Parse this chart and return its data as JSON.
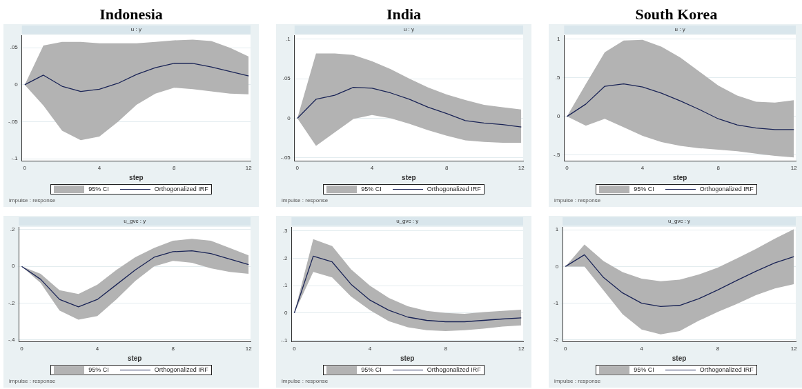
{
  "chart_data": [
    {
      "type": "line",
      "title": "Indonesia",
      "subtitle": "u : y",
      "xlabel": "step",
      "annotations": [
        "95% CI",
        "impulse : response"
      ],
      "x": [
        0,
        1,
        2,
        3,
        4,
        5,
        6,
        7,
        8,
        9,
        10,
        11,
        12
      ],
      "xlim": [
        -0.15,
        12.1
      ],
      "ylim": [
        -0.103,
        0.067
      ],
      "xticks": [
        0,
        4,
        8,
        12
      ],
      "yticks": [
        {
          "value": -0.1,
          "label": "-.1"
        },
        {
          "value": -0.05,
          "label": "-.05"
        },
        0,
        {
          "value": 0.05,
          "label": ".05"
        }
      ],
      "grid": "y",
      "legend": "bottom",
      "series": [
        {
          "name": "Orthogonalized IRF",
          "type": "line",
          "color": "#1a2456",
          "values": [
            0,
            0.013,
            -0.002,
            -0.009,
            -0.006,
            0.002,
            0.014,
            0.023,
            0.029,
            0.029,
            0.024,
            0.018,
            0.012
          ],
          "lower": [
            0,
            -0.028,
            -0.062,
            -0.075,
            -0.07,
            -0.05,
            -0.027,
            -0.012,
            -0.004,
            -0.006,
            -0.009,
            -0.012,
            -0.013
          ],
          "upper": [
            0,
            0.053,
            0.058,
            0.058,
            0.056,
            0.056,
            0.056,
            0.058,
            0.06,
            0.061,
            0.059,
            0.05,
            0.038
          ]
        }
      ]
    },
    {
      "type": "line",
      "title": "India",
      "subtitle": "u : y",
      "xlabel": "step",
      "annotations": [
        "95% CI",
        "impulse : response"
      ],
      "x": [
        0,
        1,
        2,
        3,
        4,
        5,
        6,
        7,
        8,
        9,
        10,
        11,
        12
      ],
      "xlim": [
        -0.15,
        12.1
      ],
      "ylim": [
        -0.054,
        0.105
      ],
      "xticks": [
        0,
        4,
        8,
        12
      ],
      "yticks": [
        {
          "value": -0.05,
          "label": "-.05"
        },
        0,
        {
          "value": 0.05,
          "label": ".05"
        },
        {
          "value": 0.1,
          "label": ".1"
        }
      ],
      "grid": "y",
      "legend": "bottom",
      "series": [
        {
          "name": "Orthogonalized IRF",
          "type": "line",
          "color": "#1a2456",
          "values": [
            0,
            0.024,
            0.029,
            0.039,
            0.038,
            0.032,
            0.024,
            0.014,
            0.006,
            -0.003,
            -0.006,
            -0.008,
            -0.011
          ],
          "lower": [
            0,
            -0.035,
            -0.018,
            -0.001,
            0.004,
            0,
            -0.007,
            -0.015,
            -0.022,
            -0.028,
            -0.03,
            -0.031,
            -0.031
          ],
          "upper": [
            0,
            0.082,
            0.082,
            0.08,
            0.072,
            0.062,
            0.05,
            0.039,
            0.03,
            0.023,
            0.017,
            0.014,
            0.011
          ]
        }
      ]
    },
    {
      "type": "line",
      "title": "South Korea",
      "subtitle": "u : y",
      "xlabel": "step",
      "annotations": [
        "95% CI",
        "impulse : response"
      ],
      "x": [
        0,
        1,
        2,
        3,
        4,
        5,
        6,
        7,
        8,
        9,
        10,
        11,
        12
      ],
      "xlim": [
        -0.15,
        12.1
      ],
      "ylim": [
        -0.575,
        1.05
      ],
      "xticks": [
        0,
        4,
        8,
        12
      ],
      "yticks": [
        {
          "value": -0.5,
          "label": "-.5"
        },
        0,
        {
          "value": 0.5,
          "label": ".5"
        },
        1
      ],
      "grid": "y",
      "legend": "bottom",
      "series": [
        {
          "name": "Orthogonalized IRF",
          "type": "line",
          "color": "#1a2456",
          "values": [
            0,
            0.16,
            0.39,
            0.42,
            0.38,
            0.3,
            0.2,
            0.09,
            -0.03,
            -0.11,
            -0.15,
            -0.17,
            -0.17
          ],
          "lower": [
            0,
            -0.12,
            -0.03,
            -0.14,
            -0.25,
            -0.33,
            -0.38,
            -0.41,
            -0.43,
            -0.45,
            -0.48,
            -0.51,
            -0.53
          ],
          "upper": [
            0,
            0.42,
            0.83,
            0.98,
            0.99,
            0.9,
            0.76,
            0.58,
            0.4,
            0.27,
            0.19,
            0.18,
            0.21
          ]
        }
      ]
    },
    {
      "type": "line",
      "subtitle": "u_gvc : y",
      "xlabel": "step",
      "annotations": [
        "95% CI",
        "impulse : response"
      ],
      "x": [
        0,
        1,
        2,
        3,
        4,
        5,
        6,
        7,
        8,
        9,
        10,
        11,
        12
      ],
      "xlim": [
        -0.15,
        12.1
      ],
      "ylim": [
        -0.41,
        0.215
      ],
      "xticks": [
        0,
        4,
        8,
        12
      ],
      "yticks": [
        {
          "value": -0.4,
          "label": "-.4"
        },
        {
          "value": -0.2,
          "label": "-.2"
        },
        0,
        {
          "value": 0.2,
          "label": ".2"
        }
      ],
      "grid": "y",
      "legend": "bottom",
      "series": [
        {
          "name": "Orthogonalized IRF",
          "type": "line",
          "color": "#1a2456",
          "values": [
            0,
            -0.07,
            -0.18,
            -0.22,
            -0.18,
            -0.1,
            -0.02,
            0.05,
            0.08,
            0.085,
            0.07,
            0.04,
            0.01
          ],
          "lower": [
            0,
            -0.09,
            -0.24,
            -0.29,
            -0.27,
            -0.18,
            -0.08,
            0,
            0.03,
            0.02,
            -0.01,
            -0.03,
            -0.04
          ],
          "upper": [
            0,
            -0.04,
            -0.13,
            -0.15,
            -0.1,
            -0.02,
            0.05,
            0.1,
            0.14,
            0.15,
            0.14,
            0.1,
            0.06
          ]
        }
      ]
    },
    {
      "type": "line",
      "subtitle": "u_gvc : y",
      "xlabel": "step",
      "annotations": [
        "95% CI",
        "impulse : response"
      ],
      "x": [
        0,
        1,
        2,
        3,
        4,
        5,
        6,
        7,
        8,
        9,
        10,
        11,
        12
      ],
      "xlim": [
        -0.15,
        12.1
      ],
      "ylim": [
        -0.105,
        0.315
      ],
      "xticks": [
        0,
        4,
        8,
        12
      ],
      "yticks": [
        {
          "value": -0.1,
          "label": "-.1"
        },
        0,
        {
          "value": 0.1,
          "label": ".1"
        },
        {
          "value": 0.2,
          "label": ".2"
        },
        {
          "value": 0.3,
          "label": ".3"
        }
      ],
      "grid": "y",
      "legend": "bottom",
      "series": [
        {
          "name": "Orthogonalized IRF",
          "type": "line",
          "color": "#1a2456",
          "values": [
            0,
            0.208,
            0.187,
            0.105,
            0.047,
            0.01,
            -0.015,
            -0.027,
            -0.032,
            -0.032,
            -0.027,
            -0.022,
            -0.018
          ],
          "lower": [
            0,
            0.15,
            0.13,
            0.06,
            0.01,
            -0.03,
            -0.052,
            -0.063,
            -0.066,
            -0.063,
            -0.057,
            -0.05,
            -0.045
          ],
          "upper": [
            0,
            0.27,
            0.245,
            0.16,
            0.1,
            0.055,
            0.025,
            0.008,
            0,
            -0.003,
            0.003,
            0.008,
            0.012
          ]
        }
      ]
    },
    {
      "type": "line",
      "subtitle": "u_gvc : y",
      "xlabel": "step",
      "annotations": [
        "95% CI",
        "impulse : response"
      ],
      "x": [
        0,
        1,
        2,
        3,
        4,
        5,
        6,
        7,
        8,
        9,
        10,
        11,
        12
      ],
      "xlim": [
        -0.15,
        12.1
      ],
      "ylim": [
        -2.05,
        1.08
      ],
      "xticks": [
        0,
        4,
        8,
        12
      ],
      "yticks": [
        -2,
        -1,
        0,
        1
      ],
      "grid": "y",
      "legend": "bottom",
      "series": [
        {
          "name": "Orthogonalized IRF",
          "type": "line",
          "color": "#1a2456",
          "values": [
            0,
            0.32,
            -0.3,
            -0.72,
            -1,
            -1.09,
            -1.06,
            -0.88,
            -0.64,
            -0.38,
            -0.13,
            0.1,
            0.27
          ],
          "lower": [
            0,
            0,
            -0.65,
            -1.3,
            -1.72,
            -1.85,
            -1.76,
            -1.48,
            -1.24,
            -1.02,
            -0.78,
            -0.6,
            -0.48
          ],
          "upper": [
            0,
            0.6,
            0.15,
            -0.15,
            -0.33,
            -0.4,
            -0.36,
            -0.22,
            -0.03,
            0.22,
            0.48,
            0.76,
            1.02
          ]
        }
      ]
    }
  ]
}
